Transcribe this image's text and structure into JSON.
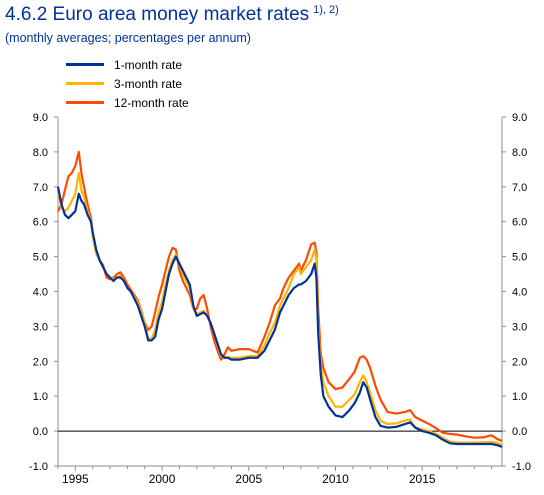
{
  "header": {
    "title": "4.6.2 Euro area money market rates",
    "title_note": "1), 2)",
    "subtitle": "(monthly averages; percentages per annum)"
  },
  "chart_data": {
    "type": "line",
    "title": "4.6.2 Euro area money market rates",
    "subtitle": "(monthly averages; percentages per annum)",
    "xlabel": "",
    "ylabel": "",
    "xlim": [
      1994.0,
      2019.6
    ],
    "ylim": [
      -1.0,
      9.0
    ],
    "xticks": [
      1995,
      2000,
      2005,
      2010,
      2015
    ],
    "xtick_labels": [
      "1995",
      "2000",
      "2005",
      "2010",
      "2015"
    ],
    "yticks": [
      -1,
      0,
      1,
      2,
      3,
      4,
      5,
      6,
      7,
      8,
      9
    ],
    "ytick_labels": [
      "-1.0",
      "0.0",
      "1.0",
      "2.0",
      "3.0",
      "4.0",
      "5.0",
      "6.0",
      "7.0",
      "8.0",
      "9.0"
    ],
    "grid": false,
    "legend": "top-left",
    "zero_line": 0,
    "series": [
      {
        "name": "1-month rate",
        "color": "#003299",
        "points": [
          [
            1994.0,
            7.0
          ],
          [
            1994.2,
            6.5
          ],
          [
            1994.4,
            6.2
          ],
          [
            1994.6,
            6.1
          ],
          [
            1994.8,
            6.2
          ],
          [
            1995.0,
            6.3
          ],
          [
            1995.2,
            6.8
          ],
          [
            1995.35,
            6.6
          ],
          [
            1995.5,
            6.5
          ],
          [
            1995.7,
            6.2
          ],
          [
            1995.9,
            6.0
          ],
          [
            1996.0,
            5.7
          ],
          [
            1996.2,
            5.2
          ],
          [
            1996.4,
            4.9
          ],
          [
            1996.6,
            4.7
          ],
          [
            1996.8,
            4.5
          ],
          [
            1997.0,
            4.4
          ],
          [
            1997.2,
            4.3
          ],
          [
            1997.4,
            4.4
          ],
          [
            1997.6,
            4.4
          ],
          [
            1997.8,
            4.3
          ],
          [
            1998.0,
            4.1
          ],
          [
            1998.2,
            4.0
          ],
          [
            1998.4,
            3.8
          ],
          [
            1998.6,
            3.6
          ],
          [
            1998.8,
            3.3
          ],
          [
            1999.0,
            3.0
          ],
          [
            1999.2,
            2.6
          ],
          [
            1999.4,
            2.6
          ],
          [
            1999.6,
            2.7
          ],
          [
            1999.8,
            3.2
          ],
          [
            2000.0,
            3.5
          ],
          [
            2000.2,
            4.0
          ],
          [
            2000.4,
            4.5
          ],
          [
            2000.6,
            4.8
          ],
          [
            2000.8,
            5.0
          ],
          [
            2001.0,
            4.8
          ],
          [
            2001.2,
            4.6
          ],
          [
            2001.4,
            4.4
          ],
          [
            2001.6,
            4.2
          ],
          [
            2001.8,
            3.6
          ],
          [
            2002.0,
            3.3
          ],
          [
            2002.2,
            3.35
          ],
          [
            2002.4,
            3.4
          ],
          [
            2002.6,
            3.3
          ],
          [
            2002.8,
            3.1
          ],
          [
            2003.0,
            2.8
          ],
          [
            2003.2,
            2.5
          ],
          [
            2003.4,
            2.2
          ],
          [
            2003.6,
            2.1
          ],
          [
            2003.8,
            2.1
          ],
          [
            2004.0,
            2.05
          ],
          [
            2004.5,
            2.05
          ],
          [
            2005.0,
            2.1
          ],
          [
            2005.5,
            2.1
          ],
          [
            2005.9,
            2.3
          ],
          [
            2006.2,
            2.6
          ],
          [
            2006.5,
            2.9
          ],
          [
            2006.8,
            3.4
          ],
          [
            2007.0,
            3.6
          ],
          [
            2007.3,
            3.9
          ],
          [
            2007.6,
            4.1
          ],
          [
            2007.9,
            4.2
          ],
          [
            2008.0,
            4.2
          ],
          [
            2008.3,
            4.3
          ],
          [
            2008.6,
            4.5
          ],
          [
            2008.8,
            4.8
          ],
          [
            2008.9,
            4.4
          ],
          [
            2009.0,
            2.8
          ],
          [
            2009.15,
            1.6
          ],
          [
            2009.3,
            1.0
          ],
          [
            2009.6,
            0.7
          ],
          [
            2010.0,
            0.45
          ],
          [
            2010.4,
            0.4
          ],
          [
            2010.8,
            0.6
          ],
          [
            2011.1,
            0.8
          ],
          [
            2011.4,
            1.1
          ],
          [
            2011.6,
            1.4
          ],
          [
            2011.8,
            1.25
          ],
          [
            2012.0,
            0.9
          ],
          [
            2012.3,
            0.4
          ],
          [
            2012.6,
            0.15
          ],
          [
            2013.0,
            0.1
          ],
          [
            2013.5,
            0.12
          ],
          [
            2014.0,
            0.2
          ],
          [
            2014.3,
            0.25
          ],
          [
            2014.6,
            0.1
          ],
          [
            2015.0,
            0.0
          ],
          [
            2015.4,
            -0.05
          ],
          [
            2015.8,
            -0.12
          ],
          [
            2016.2,
            -0.25
          ],
          [
            2016.6,
            -0.35
          ],
          [
            2017.0,
            -0.37
          ],
          [
            2017.5,
            -0.37
          ],
          [
            2018.0,
            -0.37
          ],
          [
            2018.5,
            -0.37
          ],
          [
            2019.0,
            -0.37
          ],
          [
            2019.3,
            -0.4
          ],
          [
            2019.6,
            -0.45
          ]
        ]
      },
      {
        "name": "3-month rate",
        "color": "#ffb400",
        "points": [
          [
            1994.0,
            6.9
          ],
          [
            1994.2,
            6.4
          ],
          [
            1994.4,
            6.3
          ],
          [
            1994.6,
            6.4
          ],
          [
            1994.8,
            6.6
          ],
          [
            1995.0,
            6.8
          ],
          [
            1995.2,
            7.4
          ],
          [
            1995.35,
            6.9
          ],
          [
            1995.5,
            6.7
          ],
          [
            1995.7,
            6.3
          ],
          [
            1995.9,
            6.0
          ],
          [
            1996.0,
            5.6
          ],
          [
            1996.2,
            5.1
          ],
          [
            1996.4,
            4.9
          ],
          [
            1996.6,
            4.7
          ],
          [
            1996.8,
            4.5
          ],
          [
            1997.0,
            4.4
          ],
          [
            1997.2,
            4.35
          ],
          [
            1997.4,
            4.4
          ],
          [
            1997.6,
            4.45
          ],
          [
            1997.8,
            4.3
          ],
          [
            1998.0,
            4.1
          ],
          [
            1998.2,
            4.0
          ],
          [
            1998.4,
            3.85
          ],
          [
            1998.6,
            3.7
          ],
          [
            1998.8,
            3.4
          ],
          [
            1999.0,
            3.1
          ],
          [
            1999.2,
            2.65
          ],
          [
            1999.4,
            2.65
          ],
          [
            1999.6,
            2.9
          ],
          [
            1999.8,
            3.4
          ],
          [
            2000.0,
            3.7
          ],
          [
            2000.2,
            4.2
          ],
          [
            2000.4,
            4.6
          ],
          [
            2000.6,
            4.9
          ],
          [
            2000.8,
            5.05
          ],
          [
            2001.0,
            4.8
          ],
          [
            2001.2,
            4.5
          ],
          [
            2001.4,
            4.3
          ],
          [
            2001.6,
            4.1
          ],
          [
            2001.8,
            3.5
          ],
          [
            2002.0,
            3.35
          ],
          [
            2002.2,
            3.4
          ],
          [
            2002.4,
            3.45
          ],
          [
            2002.6,
            3.3
          ],
          [
            2002.8,
            3.1
          ],
          [
            2003.0,
            2.8
          ],
          [
            2003.2,
            2.45
          ],
          [
            2003.4,
            2.15
          ],
          [
            2003.6,
            2.12
          ],
          [
            2003.8,
            2.12
          ],
          [
            2004.0,
            2.1
          ],
          [
            2004.5,
            2.1
          ],
          [
            2005.0,
            2.15
          ],
          [
            2005.5,
            2.15
          ],
          [
            2005.9,
            2.45
          ],
          [
            2006.2,
            2.8
          ],
          [
            2006.5,
            3.1
          ],
          [
            2006.8,
            3.6
          ],
          [
            2007.0,
            3.8
          ],
          [
            2007.3,
            4.1
          ],
          [
            2007.6,
            4.5
          ],
          [
            2007.9,
            4.7
          ],
          [
            2008.0,
            4.5
          ],
          [
            2008.3,
            4.7
          ],
          [
            2008.6,
            4.9
          ],
          [
            2008.8,
            5.2
          ],
          [
            2008.9,
            4.9
          ],
          [
            2009.0,
            3.0
          ],
          [
            2009.15,
            1.9
          ],
          [
            2009.3,
            1.4
          ],
          [
            2009.6,
            1.0
          ],
          [
            2010.0,
            0.7
          ],
          [
            2010.4,
            0.7
          ],
          [
            2010.8,
            0.9
          ],
          [
            2011.1,
            1.05
          ],
          [
            2011.4,
            1.4
          ],
          [
            2011.6,
            1.6
          ],
          [
            2011.8,
            1.4
          ],
          [
            2012.0,
            1.1
          ],
          [
            2012.3,
            0.6
          ],
          [
            2012.6,
            0.3
          ],
          [
            2013.0,
            0.2
          ],
          [
            2013.5,
            0.22
          ],
          [
            2014.0,
            0.3
          ],
          [
            2014.3,
            0.33
          ],
          [
            2014.6,
            0.1
          ],
          [
            2015.0,
            0.05
          ],
          [
            2015.4,
            0.0
          ],
          [
            2015.8,
            -0.08
          ],
          [
            2016.2,
            -0.2
          ],
          [
            2016.6,
            -0.3
          ],
          [
            2017.0,
            -0.33
          ],
          [
            2017.5,
            -0.33
          ],
          [
            2018.0,
            -0.33
          ],
          [
            2018.5,
            -0.32
          ],
          [
            2019.0,
            -0.31
          ],
          [
            2019.3,
            -0.33
          ],
          [
            2019.6,
            -0.4
          ]
        ]
      },
      {
        "name": "12-month rate",
        "color": "#ff4b00",
        "points": [
          [
            1994.0,
            6.3
          ],
          [
            1994.2,
            6.5
          ],
          [
            1994.4,
            6.9
          ],
          [
            1994.6,
            7.3
          ],
          [
            1994.8,
            7.4
          ],
          [
            1995.0,
            7.6
          ],
          [
            1995.2,
            8.0
          ],
          [
            1995.35,
            7.4
          ],
          [
            1995.5,
            7.0
          ],
          [
            1995.7,
            6.5
          ],
          [
            1995.9,
            6.1
          ],
          [
            1996.0,
            5.6
          ],
          [
            1996.2,
            5.1
          ],
          [
            1996.4,
            4.9
          ],
          [
            1996.6,
            4.75
          ],
          [
            1996.8,
            4.4
          ],
          [
            1997.0,
            4.35
          ],
          [
            1997.2,
            4.4
          ],
          [
            1997.4,
            4.5
          ],
          [
            1997.6,
            4.55
          ],
          [
            1997.8,
            4.4
          ],
          [
            1998.0,
            4.2
          ],
          [
            1998.2,
            4.05
          ],
          [
            1998.4,
            3.9
          ],
          [
            1998.6,
            3.75
          ],
          [
            1998.8,
            3.45
          ],
          [
            1999.0,
            3.1
          ],
          [
            1999.2,
            2.9
          ],
          [
            1999.4,
            3.0
          ],
          [
            1999.6,
            3.4
          ],
          [
            1999.8,
            3.85
          ],
          [
            2000.0,
            4.2
          ],
          [
            2000.2,
            4.6
          ],
          [
            2000.4,
            5.0
          ],
          [
            2000.6,
            5.25
          ],
          [
            2000.8,
            5.2
          ],
          [
            2001.0,
            4.6
          ],
          [
            2001.2,
            4.3
          ],
          [
            2001.4,
            4.1
          ],
          [
            2001.6,
            3.9
          ],
          [
            2001.8,
            3.5
          ],
          [
            2002.0,
            3.5
          ],
          [
            2002.2,
            3.8
          ],
          [
            2002.4,
            3.9
          ],
          [
            2002.6,
            3.5
          ],
          [
            2002.8,
            3.0
          ],
          [
            2003.0,
            2.6
          ],
          [
            2003.2,
            2.3
          ],
          [
            2003.4,
            2.05
          ],
          [
            2003.6,
            2.2
          ],
          [
            2003.8,
            2.4
          ],
          [
            2004.0,
            2.3
          ],
          [
            2004.5,
            2.35
          ],
          [
            2005.0,
            2.35
          ],
          [
            2005.5,
            2.25
          ],
          [
            2005.9,
            2.7
          ],
          [
            2006.2,
            3.1
          ],
          [
            2006.5,
            3.6
          ],
          [
            2006.8,
            3.8
          ],
          [
            2007.0,
            4.1
          ],
          [
            2007.3,
            4.4
          ],
          [
            2007.6,
            4.6
          ],
          [
            2007.9,
            4.8
          ],
          [
            2008.0,
            4.6
          ],
          [
            2008.3,
            4.9
          ],
          [
            2008.6,
            5.35
          ],
          [
            2008.8,
            5.4
          ],
          [
            2008.9,
            5.1
          ],
          [
            2009.0,
            3.5
          ],
          [
            2009.15,
            2.2
          ],
          [
            2009.3,
            1.8
          ],
          [
            2009.6,
            1.4
          ],
          [
            2010.0,
            1.2
          ],
          [
            2010.4,
            1.25
          ],
          [
            2010.8,
            1.5
          ],
          [
            2011.1,
            1.7
          ],
          [
            2011.4,
            2.1
          ],
          [
            2011.6,
            2.15
          ],
          [
            2011.8,
            2.05
          ],
          [
            2012.0,
            1.8
          ],
          [
            2012.3,
            1.3
          ],
          [
            2012.6,
            0.9
          ],
          [
            2013.0,
            0.55
          ],
          [
            2013.5,
            0.5
          ],
          [
            2014.0,
            0.55
          ],
          [
            2014.3,
            0.6
          ],
          [
            2014.6,
            0.4
          ],
          [
            2015.0,
            0.3
          ],
          [
            2015.4,
            0.2
          ],
          [
            2015.8,
            0.08
          ],
          [
            2016.2,
            -0.05
          ],
          [
            2016.6,
            -0.08
          ],
          [
            2017.0,
            -0.1
          ],
          [
            2017.5,
            -0.15
          ],
          [
            2018.0,
            -0.19
          ],
          [
            2018.5,
            -0.18
          ],
          [
            2019.0,
            -0.12
          ],
          [
            2019.3,
            -0.22
          ],
          [
            2019.6,
            -0.28
          ]
        ]
      }
    ]
  }
}
